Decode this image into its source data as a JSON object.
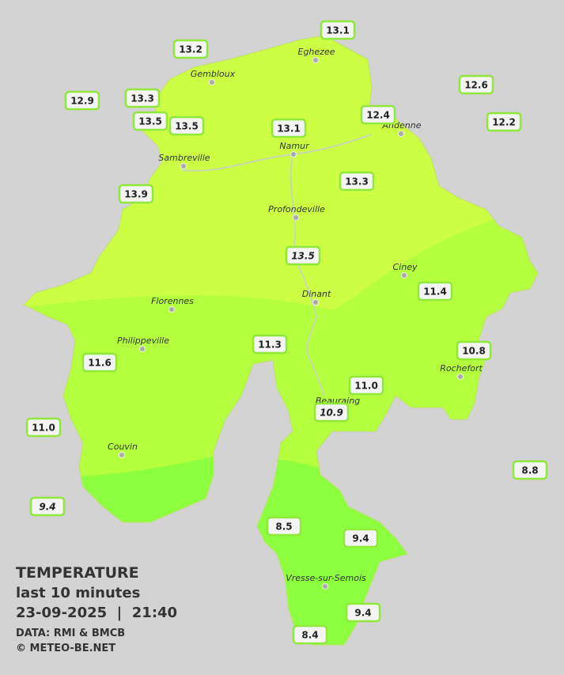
{
  "legend": {
    "title": "TEMPERATURE",
    "subtitle": "last 10 minutes",
    "timestamp": "23-09-2025  |  21:40",
    "source": "DATA: RMI & BMCB",
    "copyright": "© METEO-BE.NET"
  },
  "towns": [
    "Eghezee",
    "Gembloux",
    "Andenne",
    "Namur",
    "Sambreville",
    "Profondeville",
    "Ciney",
    "Florennes",
    "Dinant",
    "Philippeville",
    "Rochefort",
    "Beauraing",
    "Couvin",
    "Vresse-sur-Semois"
  ],
  "stations": [
    "13.1",
    "13.2",
    "12.6",
    "12.9",
    "13.3",
    "13.5",
    "13.5",
    "13.1",
    "12.4",
    "12.2",
    "13.3",
    "13.9",
    "13.5",
    "11.4",
    "11.3",
    "10.8",
    "11.6",
    "11.0",
    "10.9",
    "11.0",
    "8.8",
    "9.4",
    "8.5",
    "9.4",
    "9.4",
    "8.4"
  ]
}
